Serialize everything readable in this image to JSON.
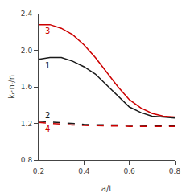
{
  "chart_data": {
    "type": "line",
    "xlabel": "a/t",
    "ylabel": "kᵣ·nᵣ/n",
    "xlim": [
      0.2,
      0.8
    ],
    "ylim": [
      0.8,
      2.4
    ],
    "xticks": [
      0.2,
      0.4,
      0.6,
      0.8
    ],
    "yticks": [
      0.8,
      1.2,
      1.6,
      {
        "value": 2.0,
        "label": "2.0"
      },
      2.4
    ],
    "grid": false,
    "x": [
      0.2,
      0.25,
      0.3,
      0.35,
      0.4,
      0.45,
      0.5,
      0.55,
      0.6,
      0.65,
      0.7,
      0.75,
      0.8
    ],
    "series": [
      {
        "name": "3",
        "color": "#cc0000",
        "line_style": "solid",
        "values": [
          2.28,
          2.28,
          2.24,
          2.17,
          2.06,
          1.92,
          1.76,
          1.6,
          1.46,
          1.37,
          1.31,
          1.28,
          1.27
        ]
      },
      {
        "name": "1",
        "color": "#1a1a1a",
        "line_style": "solid",
        "values": [
          1.9,
          1.92,
          1.92,
          1.88,
          1.82,
          1.74,
          1.62,
          1.5,
          1.38,
          1.32,
          1.28,
          1.27,
          1.26
        ]
      },
      {
        "name": "2",
        "color": "#1a1a1a",
        "line_style": "dashed",
        "values": [
          1.225,
          1.215,
          1.205,
          1.197,
          1.19,
          1.185,
          1.182,
          1.18,
          1.178,
          1.177,
          1.176,
          1.176,
          1.176
        ]
      },
      {
        "name": "4",
        "color": "#cc0000",
        "line_style": "dashed",
        "values": [
          1.21,
          1.2,
          1.19,
          1.183,
          1.178,
          1.174,
          1.171,
          1.169,
          1.168,
          1.167,
          1.166,
          1.166,
          1.166
        ]
      }
    ]
  }
}
